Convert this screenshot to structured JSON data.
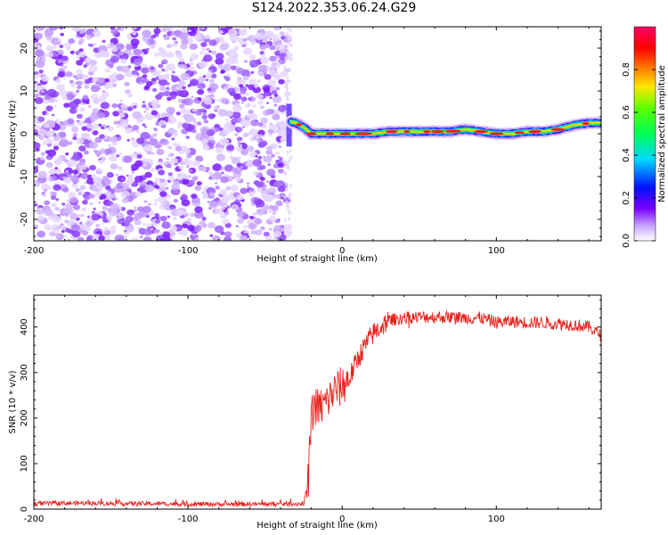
{
  "title": "S124.2022.353.06.24.G29",
  "chart_data": [
    {
      "type": "heatmap",
      "xlabel": "Height of straight line (km)",
      "ylabel": "Frequency (Hz)",
      "xlim": [
        -200,
        168
      ],
      "ylim": [
        -25,
        25
      ],
      "xticks": [
        -200,
        -100,
        0,
        100
      ],
      "yticks": [
        -20,
        -10,
        0,
        10,
        20
      ],
      "noise_region_x": [
        -200,
        -35
      ],
      "ridge": {
        "x": [
          -35,
          -30,
          -25,
          -20,
          -10,
          0,
          10,
          20,
          30,
          40,
          50,
          60,
          70,
          80,
          90,
          100,
          110,
          120,
          130,
          140,
          150,
          160,
          168
        ],
        "freq_hz": [
          3,
          2.5,
          1.5,
          0,
          0,
          0,
          0,
          0,
          0.5,
          0.5,
          0.5,
          0.5,
          0.5,
          1,
          0.5,
          0,
          0,
          0.5,
          0.5,
          1,
          2,
          2.5,
          2.5
        ]
      },
      "colorbar": {
        "label": "Normalized spectral amplitude",
        "range": [
          0,
          1
        ],
        "ticks": [
          "0.0",
          "0.2",
          "0.4",
          "0.6",
          "0.8"
        ]
      }
    },
    {
      "type": "line",
      "xlabel": "Height of straight line (km)",
      "ylabel": "SNR (10 * v/v)",
      "xlim": [
        -200,
        168
      ],
      "ylim": [
        0,
        470
      ],
      "xticks": [
        -200,
        -100,
        0,
        100
      ],
      "yticks": [
        0,
        100,
        200,
        300,
        400
      ],
      "series": [
        {
          "name": "SNR",
          "color": "#e8231e",
          "x": [
            -200,
            -180,
            -160,
            -140,
            -120,
            -100,
            -80,
            -60,
            -40,
            -25,
            -22,
            -20,
            -18,
            -15,
            -10,
            -5,
            0,
            5,
            10,
            15,
            20,
            25,
            30,
            40,
            50,
            60,
            70,
            80,
            90,
            100,
            110,
            120,
            130,
            140,
            150,
            160,
            168
          ],
          "values": [
            12,
            13,
            13,
            12,
            12,
            11,
            11,
            11,
            11,
            12,
            60,
            200,
            230,
            220,
            235,
            260,
            270,
            290,
            330,
            360,
            385,
            400,
            415,
            420,
            422,
            422,
            422,
            420,
            420,
            410,
            412,
            410,
            410,
            408,
            405,
            400,
            382
          ]
        }
      ]
    }
  ]
}
